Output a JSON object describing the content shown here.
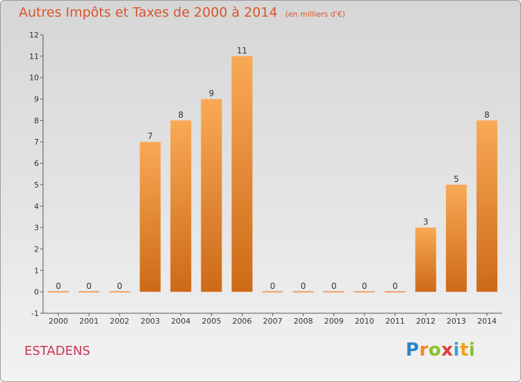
{
  "title": "Autres Impôts et Taxes de 2000 à 2014",
  "title_unit": "(en milliers d'€)",
  "commune": "ESTADENS",
  "logo": {
    "letters": [
      "P",
      "r",
      "o",
      "x",
      "i",
      "t",
      "i"
    ],
    "colors": [
      "#2c84c6",
      "#f08a1c",
      "#8bbf2a",
      "#e23a3a",
      "#3aa0d8",
      "#f0a01c",
      "#8bbf2a"
    ]
  },
  "colors": {
    "title": "#d8542e",
    "commune": "#cc3355",
    "bar_top": "#f9a955",
    "bar_bottom": "#cd6a17",
    "zero_bar": "#f1a065"
  },
  "chart_data": {
    "type": "bar",
    "categories": [
      "2000",
      "2001",
      "2002",
      "2003",
      "2004",
      "2005",
      "2006",
      "2007",
      "2008",
      "2009",
      "2010",
      "2011",
      "2012",
      "2013",
      "2014"
    ],
    "values": [
      0,
      0,
      0,
      7,
      8,
      9,
      11,
      0,
      0,
      0,
      0,
      0,
      3,
      5,
      8
    ],
    "data_labels": [
      "0",
      "0",
      "0",
      "7",
      "8",
      "9",
      "11",
      "0",
      "0",
      "0",
      "0",
      "0",
      "3",
      "5",
      "8"
    ],
    "y_ticks": [
      "-1",
      "0",
      "1",
      "2",
      "3",
      "4",
      "5",
      "6",
      "7",
      "8",
      "9",
      "10",
      "11",
      "12"
    ],
    "ylim": [
      -1,
      12
    ],
    "grid": false,
    "legend": "none"
  }
}
